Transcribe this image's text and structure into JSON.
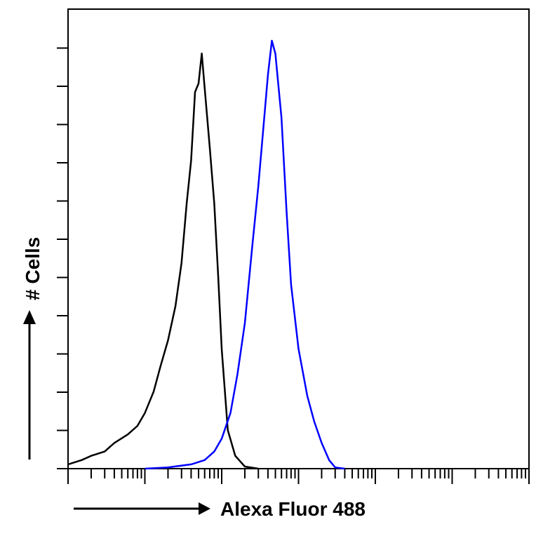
{
  "chart_data": {
    "type": "line",
    "title": "",
    "xlabel": "Alexa Fluor 488",
    "ylabel": "# Cells",
    "x_scale": "log",
    "xlim": [
      1,
      1000000
    ],
    "ylim": [
      0,
      100
    ],
    "grid": false,
    "legend": "none",
    "series": [
      {
        "color": "#000000",
        "x": [
          1,
          1.5,
          2,
          3,
          4,
          6,
          8,
          10,
          13,
          16,
          20,
          25,
          30,
          35,
          40,
          45,
          50,
          55,
          60,
          70,
          80,
          90,
          100,
          120,
          150,
          200,
          300
        ],
        "y": [
          1,
          2,
          3,
          4,
          6,
          8,
          10,
          13,
          18,
          24,
          30,
          38,
          48,
          62,
          72,
          88,
          90,
          97,
          89,
          75,
          62,
          45,
          28,
          9,
          3,
          0.5,
          0
        ]
      },
      {
        "color": "#0000ff",
        "x": [
          10,
          20,
          40,
          60,
          80,
          100,
          130,
          160,
          200,
          250,
          300,
          350,
          400,
          450,
          500,
          600,
          700,
          800,
          1000,
          1300,
          1600,
          2000,
          2500,
          3000,
          4000
        ],
        "y": [
          0,
          0.3,
          1,
          2,
          4,
          7,
          13,
          22,
          34,
          52,
          66,
          80,
          92,
          100,
          97,
          82,
          60,
          43,
          28,
          17,
          11,
          6,
          2,
          0.3,
          0
        ]
      }
    ]
  },
  "axes": {
    "x_title": "Alexa Fluor 488",
    "y_title": "# Cells"
  },
  "colors": {
    "control": "#000000",
    "stained": "#0000ff"
  }
}
